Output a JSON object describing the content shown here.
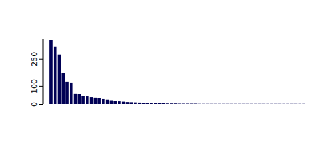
{
  "chart_data": {
    "type": "bar",
    "categories": [
      null,
      null,
      null,
      null,
      null,
      null,
      null,
      null,
      null,
      null,
      null,
      null,
      null,
      null,
      null,
      null,
      null,
      null,
      null,
      null,
      null,
      null,
      null,
      null,
      null,
      null,
      null,
      null,
      null,
      null,
      null,
      null,
      null,
      null,
      null,
      null,
      null,
      null,
      null,
      null,
      null,
      null,
      null,
      null,
      null,
      null,
      null,
      null,
      null,
      null,
      null,
      null,
      null,
      null,
      null,
      null,
      null,
      null,
      null,
      null,
      null,
      null,
      null,
      null
    ],
    "values": [
      354,
      315,
      273,
      169,
      123,
      119,
      58,
      54,
      46,
      42,
      38,
      35,
      31,
      27,
      24,
      21,
      18,
      15,
      13,
      11,
      10,
      9,
      8,
      7,
      6,
      5,
      5,
      4,
      4,
      3,
      3,
      3,
      2,
      2,
      2,
      2,
      2,
      1,
      1,
      1,
      1,
      1,
      1,
      1,
      1,
      1,
      1,
      1,
      1,
      1,
      1,
      1,
      1,
      1,
      1,
      1,
      1,
      1,
      1,
      1,
      1,
      1,
      1,
      1
    ],
    "color": "#000055",
    "ylim": [
      0,
      360
    ],
    "yticks": [
      0,
      100,
      250
    ],
    "grid": false,
    "tick_labels": "y"
  }
}
